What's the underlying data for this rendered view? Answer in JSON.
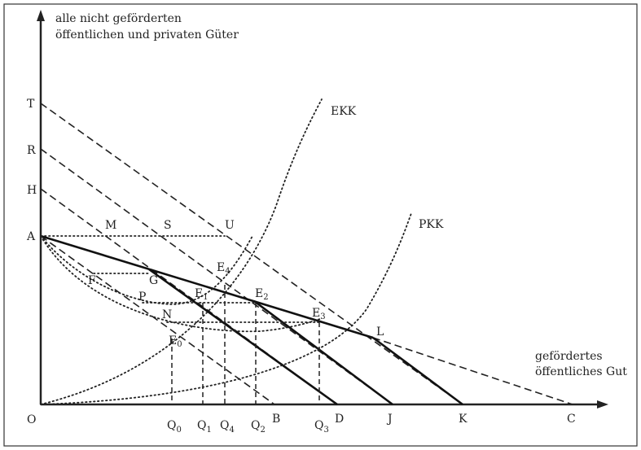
{
  "axes": {
    "y_label_line1": "alle nicht geförderten",
    "y_label_line2": "öffentlichen und privaten Güter",
    "x_label_line1": "gefördertes",
    "x_label_line2": "öffentliches Gut",
    "origin": "O"
  },
  "y_points": {
    "T": "T",
    "R": "R",
    "H": "H",
    "A": "A"
  },
  "x_points": {
    "Q0": "Q",
    "Q0_sub": "0",
    "Q1": "Q",
    "Q1_sub": "1",
    "Q4": "Q",
    "Q4_sub": "4",
    "Q2": "Q",
    "Q2_sub": "2",
    "Q3": "Q",
    "Q3_sub": "3",
    "B": "B",
    "D": "D",
    "J": "J",
    "K": "K",
    "C": "C"
  },
  "curves": {
    "EKK": "EKK",
    "PKK": "PKK"
  },
  "points": {
    "M": "M",
    "S": "S",
    "U": "U",
    "F": "F",
    "G": "G",
    "P": "P",
    "N": "N",
    "L": "L",
    "E0": "E",
    "E0_sub": "0",
    "E1": "E",
    "E1_sub": "1",
    "E2": "E",
    "E2_sub": "2",
    "E3": "E",
    "E3_sub": "3",
    "E4": "E",
    "E4_sub": "4"
  }
}
